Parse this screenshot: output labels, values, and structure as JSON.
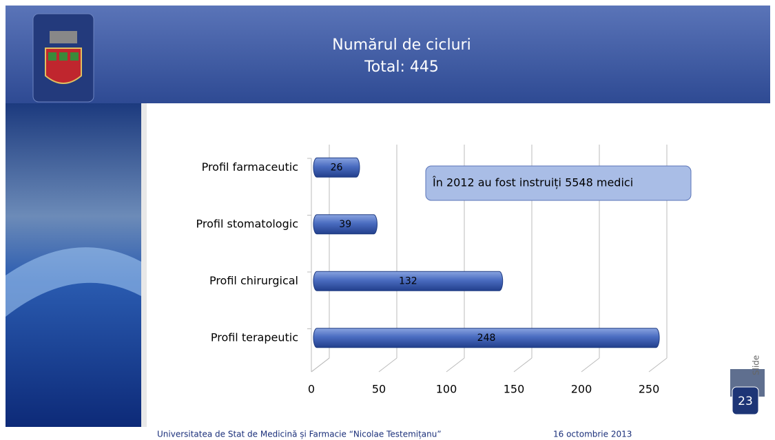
{
  "header": {
    "title": "Numărul de cicluri",
    "subtitle": "Total: 445"
  },
  "chart_data": {
    "type": "bar",
    "orientation": "horizontal",
    "categories": [
      "Profil farmaceutic",
      "Profil stomatologic",
      "Profil chirurgical",
      "Profil terapeutic"
    ],
    "values": [
      26,
      39,
      132,
      248
    ],
    "color": "#4a6cc0",
    "xlim": [
      0,
      250
    ],
    "xticks": [
      0,
      50,
      100,
      150,
      200,
      250
    ],
    "grid": true,
    "annotation": "În 2012 au fost instruiți 5548 medici"
  },
  "footer": {
    "institution": "Universitatea de Stat de Medicină și Farmacie “Nicolae Testemițanu”",
    "date": "16 octombrie 2013",
    "slide_label": "Slide",
    "slide_number": "23"
  }
}
